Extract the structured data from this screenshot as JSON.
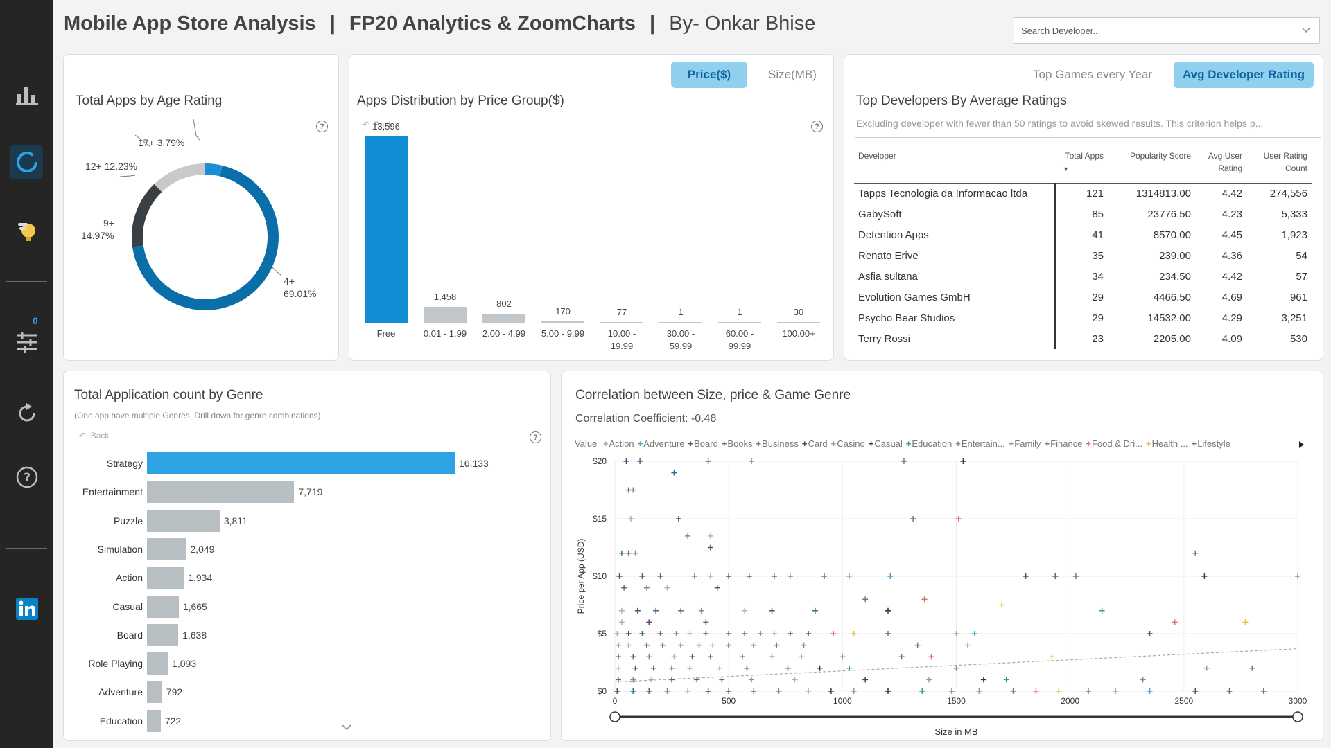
{
  "header": {
    "title_part1": "Mobile App Store Analysis",
    "sep1": "|",
    "title_part2": "FP20 Analytics & ZoomCharts",
    "sep2": "|",
    "title_part3": "By- Onkar Bhise"
  },
  "search": {
    "placeholder": "Search Developer..."
  },
  "sidebar": {
    "items": [
      "bar-chart-icon",
      "donut-chart-icon",
      "lightbulb-icon",
      "sliders-icon",
      "refresh-icon",
      "help-icon",
      "linkedin-icon"
    ],
    "filter_count": "0"
  },
  "age_rating": {
    "title": "Total Apps by Age Rating",
    "chart_data": {
      "type": "pie",
      "slices": [
        {
          "label": "4+",
          "percent": 69.01,
          "color": "#0a6ea8"
        },
        {
          "label": "9+",
          "percent": 14.97,
          "color": "#3a3f43"
        },
        {
          "label": "12+",
          "percent": 12.23,
          "color": "#c9c9c9"
        },
        {
          "label": "17+",
          "percent": 3.79,
          "color": "#1a8fd6"
        }
      ]
    },
    "labels": {
      "l17": "17+ 3.79%",
      "l12": "12+ 12.23%",
      "l9a": "9+",
      "l9b": "14.97%",
      "l4a": "4+",
      "l4b": "69.01%"
    }
  },
  "price_group": {
    "title": "Apps Distribution by Price Group($)",
    "toggle_on": "Price($)",
    "toggle_off": "Size(MB)",
    "back": "Back",
    "chart_data": {
      "type": "bar",
      "categories": [
        "Free",
        "0.01 - 1.99",
        "2.00 - 4.99",
        "5.00 - 9.99",
        "10.00 - 19.99",
        "30.00 - 59.99",
        "60.00 - 99.99",
        "100.00+"
      ],
      "values": [
        13596,
        1458,
        802,
        170,
        77,
        1,
        1,
        30
      ],
      "value_labels": [
        "13,596",
        "1,458",
        "802",
        "170",
        "77",
        "1",
        "1",
        "30"
      ],
      "cat_lines": [
        [
          "Free"
        ],
        [
          "0.01 - 1.99"
        ],
        [
          "2.00 - 4.99"
        ],
        [
          "5.00 - 9.99"
        ],
        [
          "10.00 -",
          "19.99"
        ],
        [
          "30.00 -",
          "59.99"
        ],
        [
          "60.00 -",
          "99.99"
        ],
        [
          "100.00+"
        ]
      ],
      "ylim": [
        0,
        13596
      ],
      "colors": {
        "highlight": "#118dd5",
        "default": "#c0c6ca"
      }
    }
  },
  "developers": {
    "tab1": "Top Games every Year",
    "tab2": "Avg Developer Rating",
    "title": "Top Developers By Average Ratings",
    "subtitle": "Excluding developer with fewer than 50 ratings to avoid skewed results. This criterion helps p...",
    "columns": [
      "Developer",
      "Total Apps",
      "Popularity Score",
      "Avg User Rating",
      "User Rating Count"
    ],
    "rows": [
      [
        "Tapps Tecnologia da Informacao ltda",
        "121",
        "1314813.00",
        "4.42",
        "274,556"
      ],
      [
        "GabySoft",
        "85",
        "23776.50",
        "4.23",
        "5,333"
      ],
      [
        "Detention Apps",
        "41",
        "8570.00",
        "4.45",
        "1,923"
      ],
      [
        "Renato Erive",
        "35",
        "239.00",
        "4.36",
        "54"
      ],
      [
        "Asfia sultana",
        "34",
        "234.50",
        "4.42",
        "57"
      ],
      [
        "Evolution Games GmbH",
        "29",
        "4466.50",
        "4.69",
        "961"
      ],
      [
        "Psycho Bear Studios",
        "29",
        "14532.00",
        "4.29",
        "3,251"
      ],
      [
        "Terry Rossi",
        "23",
        "2205.00",
        "4.09",
        "530"
      ]
    ]
  },
  "genre": {
    "title": "Total Application count by Genre",
    "subtitle": "(One app have multiple Genres, Drill down for genre combinations)",
    "back": "Back",
    "chart_data": {
      "type": "bar",
      "orientation": "horizontal",
      "categories": [
        "Strategy",
        "Entertainment",
        "Puzzle",
        "Simulation",
        "Action",
        "Casual",
        "Board",
        "Role Playing",
        "Adventure",
        "Education"
      ],
      "values": [
        16133,
        7719,
        3811,
        2049,
        1934,
        1665,
        1638,
        1093,
        792,
        722
      ],
      "value_labels": [
        "16,133",
        "7,719",
        "3,811",
        "2,049",
        "1,934",
        "1,665",
        "1,638",
        "1,093",
        "792",
        "722"
      ],
      "colors": {
        "highlight": "#2ea3e3",
        "default": "#b8bfc3"
      }
    }
  },
  "correlation": {
    "title": "Correlation between Size, price & Game Genre",
    "coefficient": "Correlation Coefficient: -0.48",
    "legend_title": "Value",
    "legend": [
      {
        "name": "Action",
        "color": "#aaaaaa"
      },
      {
        "name": "Adventure",
        "color": "#4aa3c8"
      },
      {
        "name": "Board",
        "color": "#555555"
      },
      {
        "name": "Books",
        "color": "#666666"
      },
      {
        "name": "Business",
        "color": "#777777"
      },
      {
        "name": "Card",
        "color": "#444444"
      },
      {
        "name": "Casino",
        "color": "#999999"
      },
      {
        "name": "Casual",
        "color": "#333333"
      },
      {
        "name": "Education",
        "color": "#3a9a9a"
      },
      {
        "name": "Entertain...",
        "color": "#888888"
      },
      {
        "name": "Family",
        "color": "#999999"
      },
      {
        "name": "Finance",
        "color": "#777777"
      },
      {
        "name": "Food & Dri...",
        "color": "#e07070"
      },
      {
        "name": "Health ...",
        "color": "#e8c040"
      },
      {
        "name": "Lifestyle",
        "color": "#777777"
      }
    ],
    "chart_data": {
      "type": "scatter",
      "xlabel": "Size in MB",
      "ylabel": "Price per App (USD)",
      "xlim": [
        0,
        3000
      ],
      "ylim": [
        0,
        20
      ],
      "xticks": [
        "0",
        "500",
        "1000",
        "1500",
        "2000",
        "2500",
        "3000"
      ],
      "yticks": [
        "$0",
        "$5",
        "$10",
        "$15",
        "$20"
      ],
      "trendline": {
        "from": [
          0,
          0.8
        ],
        "to": [
          3000,
          3.7
        ]
      },
      "points": [
        [
          50,
          20
        ],
        [
          110,
          20
        ],
        [
          410,
          20
        ],
        [
          600,
          20
        ],
        [
          1270,
          20
        ],
        [
          1530,
          20
        ],
        [
          260,
          19
        ],
        [
          60,
          17.5
        ],
        [
          80,
          17.5
        ],
        [
          70,
          15
        ],
        [
          280,
          15
        ],
        [
          1310,
          15
        ],
        [
          1510,
          15
        ],
        [
          320,
          13.5
        ],
        [
          420,
          13.5
        ],
        [
          420,
          12.5
        ],
        [
          30,
          12
        ],
        [
          60,
          12
        ],
        [
          90,
          12
        ],
        [
          2550,
          12
        ],
        [
          20,
          10
        ],
        [
          120,
          10
        ],
        [
          200,
          10
        ],
        [
          350,
          10
        ],
        [
          420,
          10
        ],
        [
          500,
          10
        ],
        [
          590,
          10
        ],
        [
          700,
          10
        ],
        [
          770,
          10
        ],
        [
          920,
          10
        ],
        [
          1030,
          10
        ],
        [
          1210,
          10
        ],
        [
          1805,
          10
        ],
        [
          1935,
          10
        ],
        [
          2025,
          10
        ],
        [
          2590,
          10
        ],
        [
          3000,
          10
        ],
        [
          40,
          9
        ],
        [
          140,
          9
        ],
        [
          230,
          9
        ],
        [
          450,
          9
        ],
        [
          1100,
          8
        ],
        [
          1360,
          8
        ],
        [
          1700,
          7.5
        ],
        [
          30,
          7
        ],
        [
          100,
          7
        ],
        [
          180,
          7
        ],
        [
          290,
          7
        ],
        [
          380,
          7
        ],
        [
          570,
          7
        ],
        [
          690,
          7
        ],
        [
          880,
          7
        ],
        [
          1200,
          7
        ],
        [
          2140,
          7
        ],
        [
          30,
          6
        ],
        [
          150,
          6
        ],
        [
          400,
          6
        ],
        [
          2460,
          6
        ],
        [
          2770,
          6
        ],
        [
          10,
          5
        ],
        [
          60,
          5
        ],
        [
          120,
          5
        ],
        [
          200,
          5
        ],
        [
          270,
          5
        ],
        [
          330,
          5
        ],
        [
          400,
          5
        ],
        [
          500,
          5
        ],
        [
          570,
          5
        ],
        [
          640,
          5
        ],
        [
          700,
          5
        ],
        [
          770,
          5
        ],
        [
          850,
          5
        ],
        [
          960,
          5
        ],
        [
          1050,
          5
        ],
        [
          1200,
          5
        ],
        [
          1500,
          5
        ],
        [
          1580,
          5
        ],
        [
          2350,
          5
        ],
        [
          15,
          4
        ],
        [
          60,
          4
        ],
        [
          140,
          4
        ],
        [
          210,
          4
        ],
        [
          290,
          4
        ],
        [
          370,
          4
        ],
        [
          430,
          4
        ],
        [
          500,
          4
        ],
        [
          610,
          4
        ],
        [
          710,
          4
        ],
        [
          830,
          4
        ],
        [
          1330,
          4
        ],
        [
          1550,
          4
        ],
        [
          15,
          3
        ],
        [
          80,
          3
        ],
        [
          150,
          3
        ],
        [
          260,
          3
        ],
        [
          340,
          3
        ],
        [
          420,
          3
        ],
        [
          560,
          3
        ],
        [
          690,
          3
        ],
        [
          820,
          3
        ],
        [
          1000,
          3
        ],
        [
          1260,
          3
        ],
        [
          1390,
          3
        ],
        [
          1920,
          3
        ],
        [
          15,
          2
        ],
        [
          90,
          2
        ],
        [
          170,
          2
        ],
        [
          250,
          2
        ],
        [
          330,
          2
        ],
        [
          460,
          2
        ],
        [
          580,
          2
        ],
        [
          760,
          2
        ],
        [
          900,
          2
        ],
        [
          1030,
          2
        ],
        [
          1500,
          2
        ],
        [
          2600,
          2
        ],
        [
          2800,
          2
        ],
        [
          15,
          1
        ],
        [
          80,
          1
        ],
        [
          160,
          1
        ],
        [
          250,
          1
        ],
        [
          360,
          1
        ],
        [
          470,
          1
        ],
        [
          600,
          1
        ],
        [
          790,
          1
        ],
        [
          1100,
          1
        ],
        [
          1380,
          1
        ],
        [
          1620,
          1
        ],
        [
          1720,
          1
        ],
        [
          2320,
          1
        ],
        [
          10,
          0
        ],
        [
          80,
          0
        ],
        [
          150,
          0
        ],
        [
          230,
          0
        ],
        [
          320,
          0
        ],
        [
          410,
          0
        ],
        [
          500,
          0
        ],
        [
          610,
          0
        ],
        [
          720,
          0
        ],
        [
          850,
          0
        ],
        [
          950,
          0
        ],
        [
          1050,
          0
        ],
        [
          1200,
          0
        ],
        [
          1350,
          0
        ],
        [
          1480,
          0
        ],
        [
          1600,
          0
        ],
        [
          1750,
          0
        ],
        [
          1850,
          0
        ],
        [
          1950,
          0
        ],
        [
          2080,
          0
        ],
        [
          2200,
          0
        ],
        [
          2350,
          0
        ],
        [
          2550,
          0
        ],
        [
          2700,
          0
        ],
        [
          2850,
          0
        ]
      ]
    }
  }
}
